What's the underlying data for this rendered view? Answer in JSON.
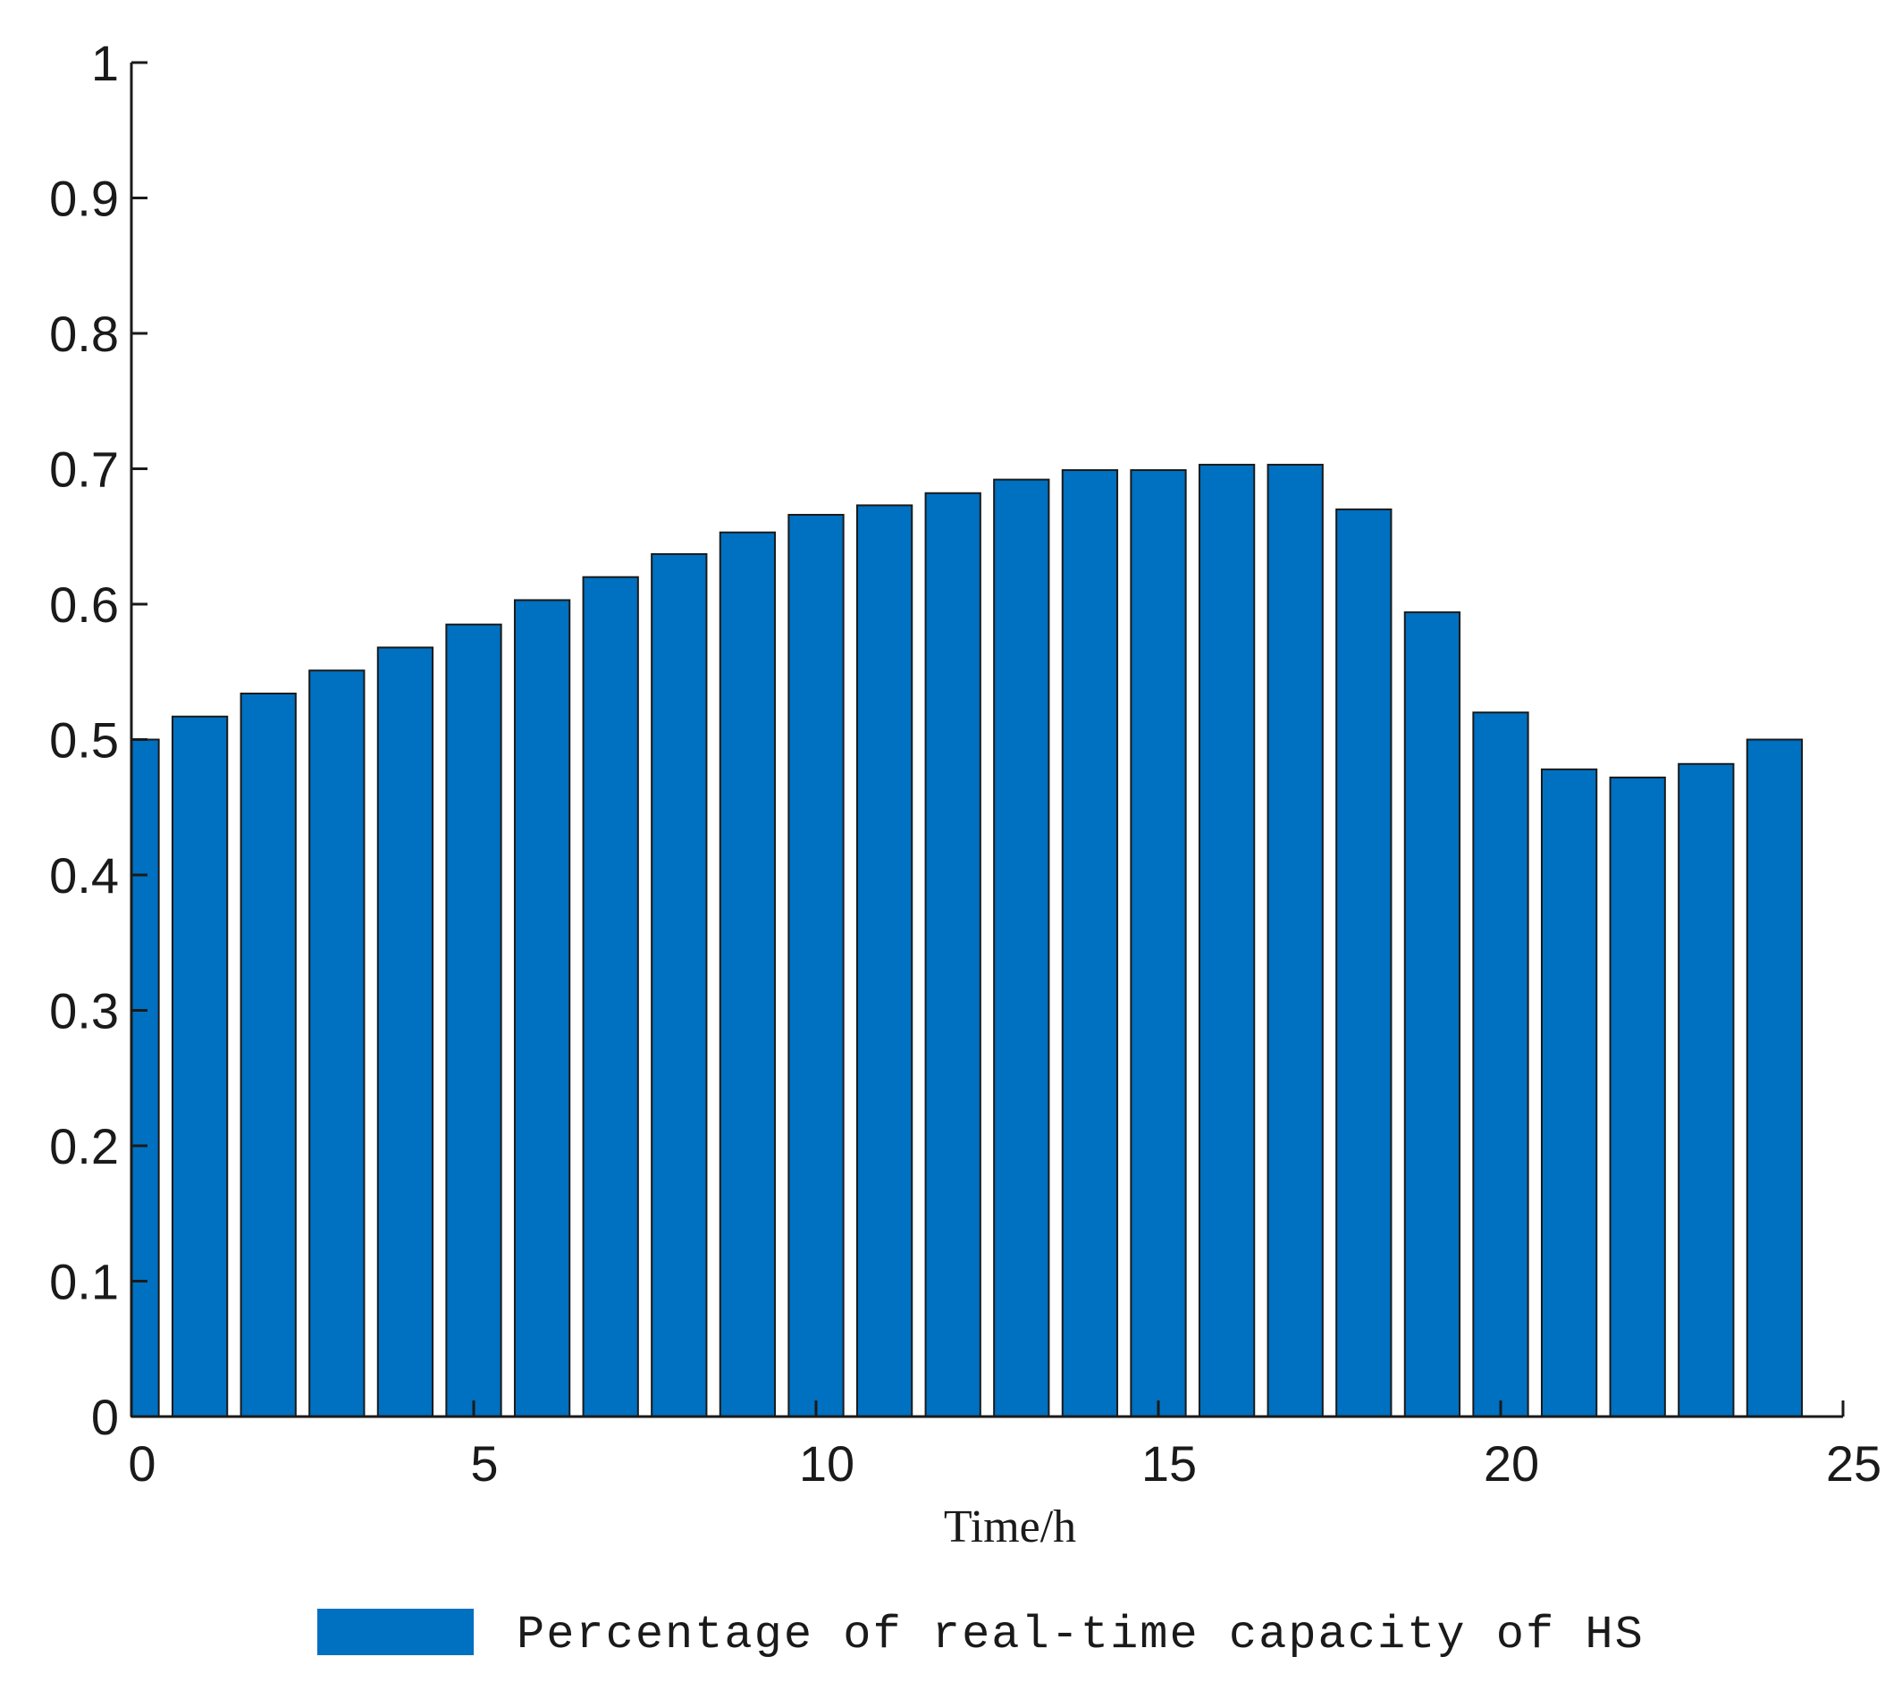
{
  "chart_data": {
    "type": "bar",
    "title": "",
    "xlabel": "Time/h",
    "ylabel": "",
    "xlim": [
      0,
      25
    ],
    "ylim": [
      0,
      1
    ],
    "x_ticks": [
      "0",
      "5",
      "10",
      "15",
      "20",
      "25"
    ],
    "y_ticks": [
      "0",
      "0.1",
      "0.2",
      "0.3",
      "0.4",
      "0.5",
      "0.6",
      "0.7",
      "0.8",
      "0.9",
      "1"
    ],
    "grid": false,
    "legend_position": "bottom-center",
    "series": [
      {
        "name": "Percentage of real-time capacity of HS",
        "color": "#0070C0",
        "x": [
          0,
          1,
          2,
          3,
          4,
          5,
          6,
          7,
          8,
          9,
          10,
          11,
          12,
          13,
          14,
          15,
          16,
          17,
          18,
          19,
          20,
          21,
          22,
          23,
          24
        ],
        "values": [
          0.5,
          0.517,
          0.534,
          0.551,
          0.568,
          0.585,
          0.603,
          0.62,
          0.637,
          0.653,
          0.666,
          0.673,
          0.682,
          0.692,
          0.699,
          0.699,
          0.703,
          0.703,
          0.67,
          0.594,
          0.52,
          0.478,
          0.472,
          0.482,
          0.5
        ]
      }
    ]
  }
}
